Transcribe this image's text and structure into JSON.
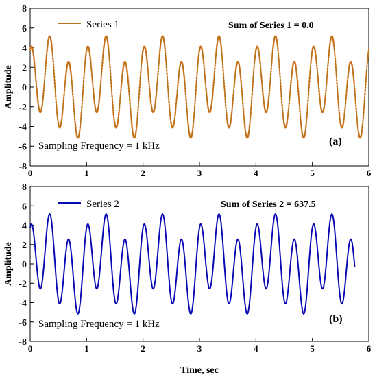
{
  "figure": {
    "xlabel": "Time, sec",
    "series_colors": [
      "#b8731a",
      "#0a0ab4"
    ],
    "marker_color": "#e8843a"
  },
  "chart_data": [
    {
      "type": "line",
      "panel_label": "(a)",
      "legend": "Series 1",
      "legend_placement": "top-left",
      "annotation_sum": "Sum of Series 1 = 0.0",
      "annotation_fs": "Sampling Frequency = 1 kHz",
      "ylabel": "Amplitude",
      "xlabel": "",
      "xlim": [
        0,
        6
      ],
      "ylim": [
        -8,
        8
      ],
      "x_ticks": [
        0,
        1,
        2,
        3,
        4,
        5,
        6
      ],
      "y_ticks": [
        -8,
        -6,
        -4,
        -2,
        0,
        2,
        4,
        6,
        8
      ],
      "grid": false,
      "x_end": 6.0,
      "signal": {
        "offset": 0.0,
        "components": [
          {
            "amplitude": 1.5,
            "frequency": 1.0,
            "phase": 0.0
          },
          {
            "amplitude": 3.93,
            "frequency": 3.0,
            "phase": 1.26
          }
        ]
      },
      "markers": true,
      "series": [
        {
          "name": "Series 1"
        }
      ]
    },
    {
      "type": "line",
      "panel_label": "(b)",
      "legend": "Series 2",
      "legend_placement": "top-left",
      "annotation_sum": "Sum of Series 2 = 637.5",
      "annotation_fs": "Sampling Frequency = 1 kHz",
      "ylabel": "Amplitude",
      "xlabel": "Time, sec",
      "xlim": [
        0,
        6
      ],
      "ylim": [
        -8,
        8
      ],
      "x_ticks": [
        0,
        1,
        2,
        3,
        4,
        5,
        6
      ],
      "y_ticks": [
        -8,
        -6,
        -4,
        -2,
        0,
        2,
        4,
        6,
        8
      ],
      "grid": false,
      "x_end": 5.75,
      "signal": {
        "offset": 0.0,
        "components": [
          {
            "amplitude": 1.5,
            "frequency": 1.0,
            "phase": 0.0
          },
          {
            "amplitude": 3.93,
            "frequency": 3.0,
            "phase": 1.26
          }
        ]
      },
      "markers": false,
      "series": [
        {
          "name": "Series 2"
        }
      ]
    }
  ]
}
